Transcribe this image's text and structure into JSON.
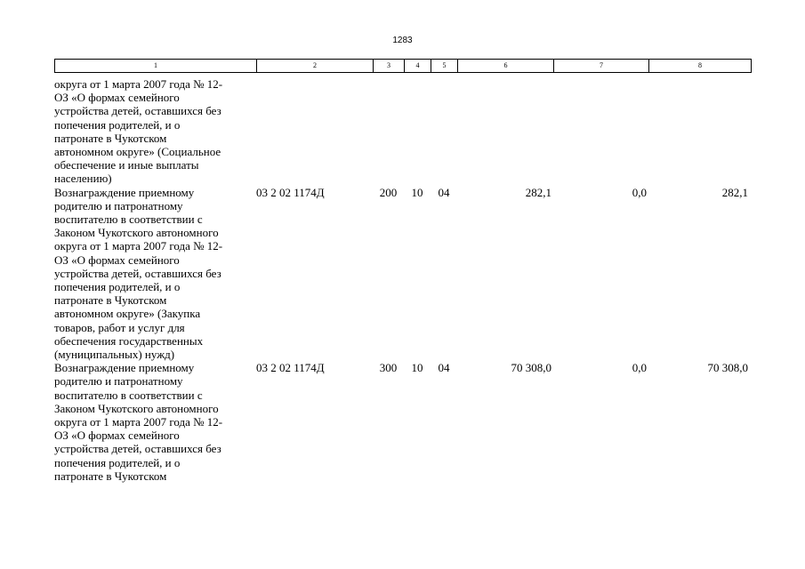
{
  "page_number": "1283",
  "column_headers": [
    "1",
    "2",
    "3",
    "4",
    "5",
    "6",
    "7",
    "8"
  ],
  "rows": [
    {
      "description_lines": [
        "округа от 1 марта 2007 года № 12-",
        "ОЗ «О формах семейного",
        "устройства детей, оставшихся без",
        "попечения родителей, и о",
        "патронате в Чукотском",
        "автономном округе» (Социальное",
        "обеспечение и иные выплаты",
        "населению)"
      ],
      "code": "",
      "c3": "",
      "c4": "",
      "c5": "",
      "c6": "",
      "c7": "",
      "c8": ""
    },
    {
      "description_lines": [
        "Вознаграждение приемному",
        "родителю и патронатному",
        "воспитателю в соответствии с",
        "Законом Чукотского автономного",
        "округа от 1 марта 2007 года № 12-",
        "ОЗ «О формах семейного",
        "устройства детей, оставшихся без",
        "попечения родителей, и о",
        "патронате в Чукотском",
        "автономном округе» (Закупка",
        "товаров, работ и услуг для",
        "обеспечения государственных",
        "(муниципальных) нужд)"
      ],
      "code": "03 2 02 1174Д",
      "c3": "200",
      "c4": "10",
      "c5": "04",
      "c6": "282,1",
      "c7": "0,0",
      "c8": "282,1"
    },
    {
      "description_lines": [
        "Вознаграждение приемному",
        "родителю и патронатному",
        "воспитателю в соответствии с",
        "Законом Чукотского автономного",
        "округа от 1 марта 2007 года № 12-",
        "ОЗ «О формах семейного",
        "устройства детей, оставшихся без",
        "попечения родителей, и о",
        "патронате в Чукотском"
      ],
      "code": "03 2 02 1174Д",
      "c3": "300",
      "c4": "10",
      "c5": "04",
      "c6": "70 308,0",
      "c7": "0,0",
      "c8": "70 308,0"
    }
  ]
}
